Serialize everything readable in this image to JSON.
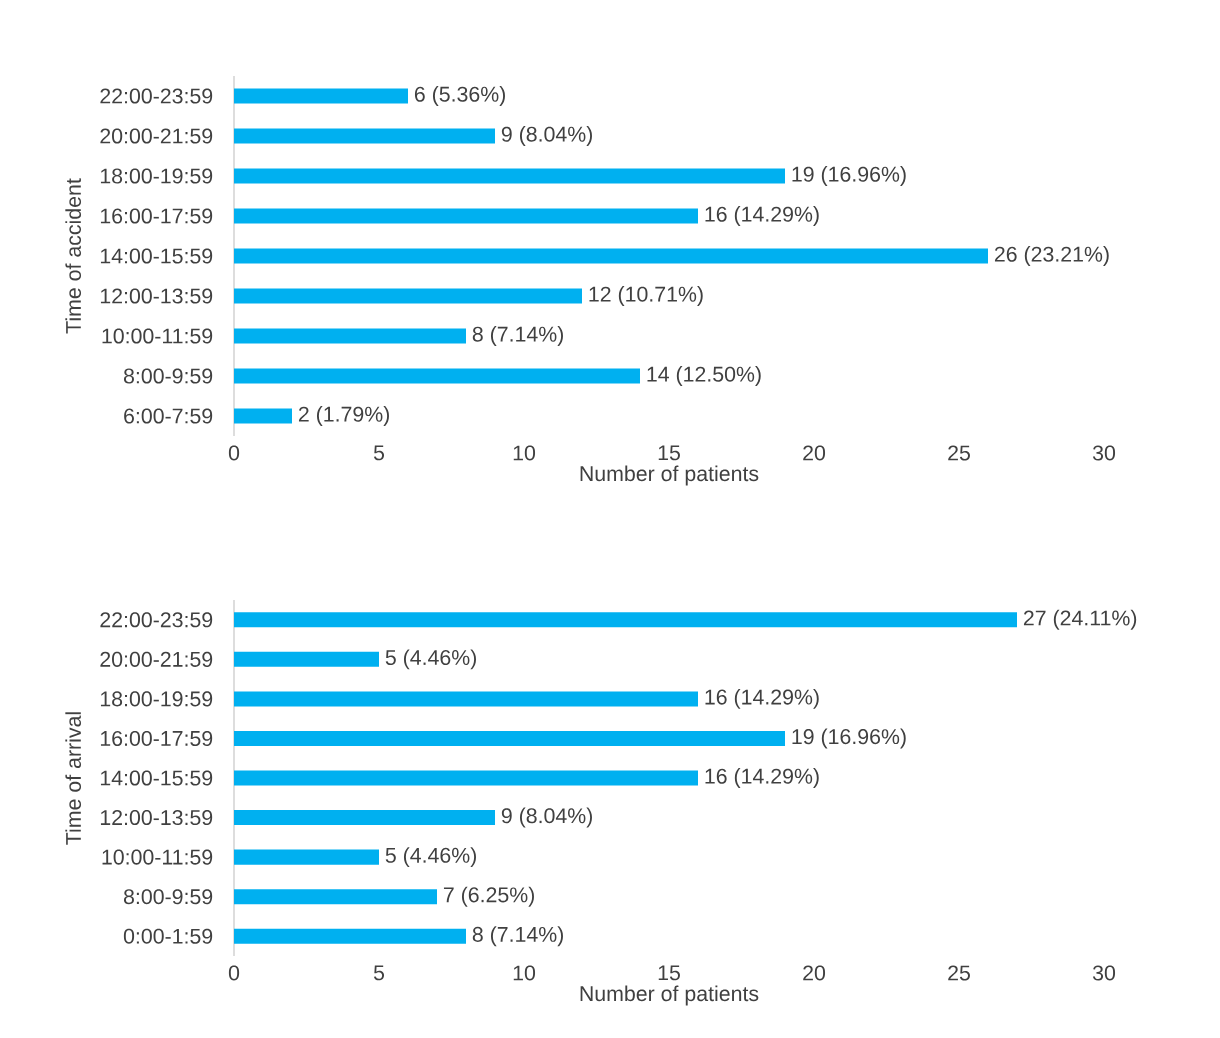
{
  "chart_data": [
    {
      "type": "bar",
      "orientation": "horizontal",
      "ylabel": "Time of accident",
      "xlabel": "Number of patients",
      "color": "#00b0f0",
      "xlim": [
        0,
        30
      ],
      "xticks": [
        0,
        5,
        10,
        15,
        20,
        25,
        30
      ],
      "categories": [
        "22:00-23:59",
        "20:00-21:59",
        "18:00-19:59",
        "16:00-17:59",
        "14:00-15:59",
        "12:00-13:59",
        "10:00-11:59",
        "8:00-9:59",
        "6:00-7:59"
      ],
      "values": [
        6,
        9,
        19,
        16,
        26,
        12,
        8,
        14,
        2
      ],
      "value_labels": [
        "6 (5.36%)",
        "9 (8.04%)",
        "19 (16.96%)",
        "16 (14.29%)",
        "26 (23.21%)",
        "12 (10.71%)",
        "8 (7.14%)",
        "14 (12.50%)",
        "2 (1.79%)"
      ]
    },
    {
      "type": "bar",
      "orientation": "horizontal",
      "ylabel": "Time of arrival",
      "xlabel": "Number of patients",
      "color": "#00b0f0",
      "xlim": [
        0,
        30
      ],
      "xticks": [
        0,
        5,
        10,
        15,
        20,
        25,
        30
      ],
      "categories": [
        "22:00-23:59",
        "20:00-21:59",
        "18:00-19:59",
        "16:00-17:59",
        "14:00-15:59",
        "12:00-13:59",
        "10:00-11:59",
        "8:00-9:59",
        "0:00-1:59"
      ],
      "values": [
        27,
        5,
        16,
        19,
        16,
        9,
        5,
        7,
        8
      ],
      "value_labels": [
        "27 (24.11%)",
        "5 (4.46%)",
        "16 (14.29%)",
        "19 (16.96%)",
        "16 (14.29%)",
        "9 (8.04%)",
        "5 (4.46%)",
        "7 (6.25%)",
        "8 (7.14%)"
      ]
    }
  ]
}
